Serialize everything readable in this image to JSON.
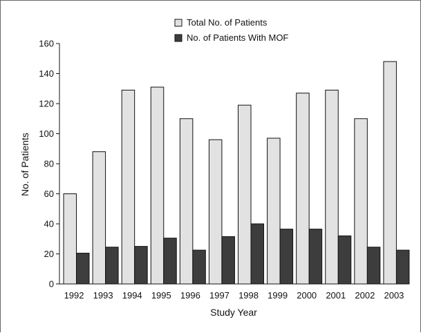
{
  "chart_data": {
    "type": "bar",
    "xlabel": "Study Year",
    "ylabel": "No. of Patients",
    "ylim": [
      0,
      160
    ],
    "yticks": [
      0,
      20,
      40,
      60,
      80,
      100,
      120,
      140,
      160
    ],
    "categories": [
      "1992",
      "1993",
      "1994",
      "1995",
      "1996",
      "1997",
      "1998",
      "1999",
      "2000",
      "2001",
      "2002",
      "2003"
    ],
    "series": [
      {
        "name": "Total No. of Patients",
        "color": "#e2e2e2",
        "values": [
          60,
          88,
          129,
          131,
          110,
          96,
          119,
          97,
          127,
          129,
          110,
          148
        ]
      },
      {
        "name": "No. of Patients With MOF",
        "color": "#3d3d3d",
        "values": [
          20.5,
          24.5,
          25,
          30.5,
          22.5,
          31.5,
          40,
          36.5,
          36.5,
          32,
          24.5,
          22.5
        ]
      }
    ],
    "legend_position": "top-center",
    "grid": false
  }
}
